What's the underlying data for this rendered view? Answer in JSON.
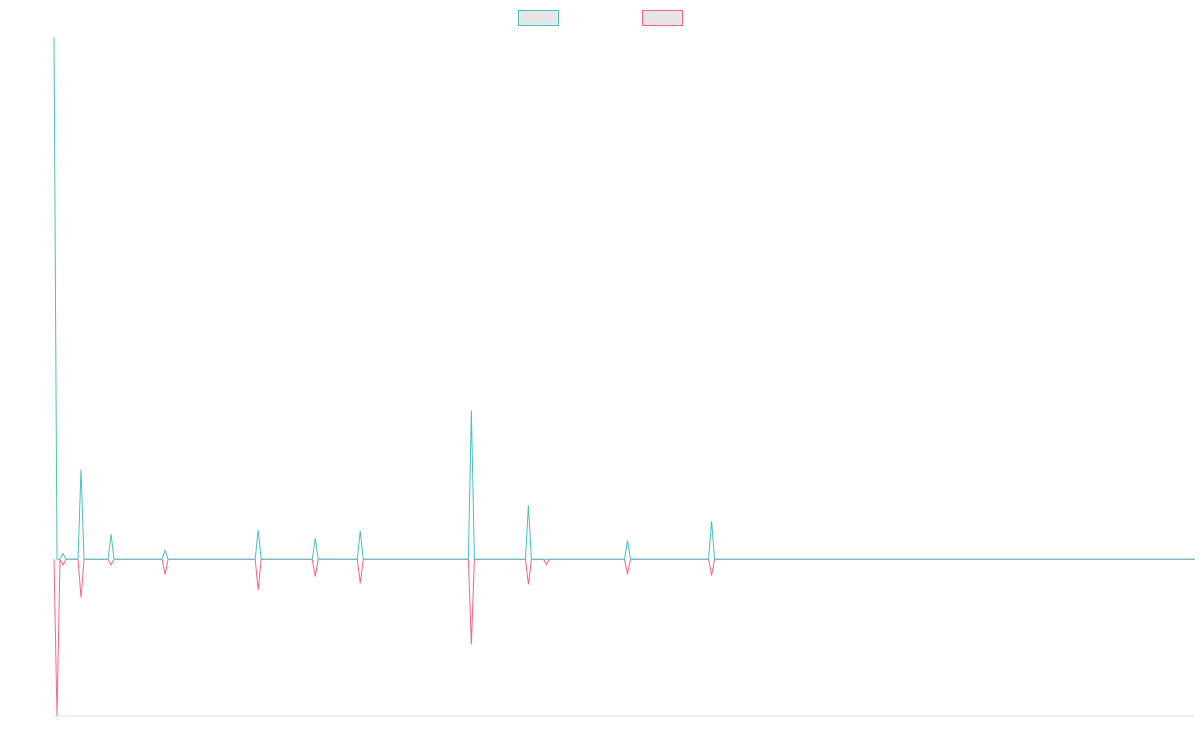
{
  "chart_data": {
    "type": "line",
    "x": [
      0,
      1,
      2,
      3,
      4,
      8,
      9,
      10,
      18,
      19,
      20,
      36,
      37,
      38,
      67,
      68,
      69,
      86,
      87,
      88,
      101,
      102,
      103,
      138,
      139,
      140,
      157,
      158,
      159,
      163,
      164,
      165,
      190,
      191,
      192,
      218,
      219,
      220,
      380
    ],
    "xlim": [
      0,
      380
    ],
    "ylim": [
      -30,
      100
    ],
    "legend": "top",
    "series": [
      {
        "color": "#4bc0c0",
        "values": [
          100,
          0,
          0,
          1.1,
          0,
          0,
          17.2,
          0,
          0,
          4.8,
          0,
          0,
          1.7,
          0,
          0,
          5.6,
          0,
          0,
          4,
          0,
          0,
          5.4,
          0,
          0,
          28.5,
          0,
          0,
          10.3,
          0,
          0,
          0,
          0,
          0,
          3.6,
          0,
          0,
          7.3,
          0,
          0
        ]
      },
      {
        "color": "#ff6384",
        "values": [
          0,
          -30,
          0,
          -1.1,
          0,
          0,
          -7.3,
          0,
          0,
          -1.1,
          0,
          0,
          -2.9,
          0,
          0,
          -5.9,
          0,
          0,
          -3.3,
          0,
          0,
          -4.6,
          0,
          0,
          -16.3,
          0,
          0,
          -4.8,
          0,
          0,
          -1,
          0,
          0,
          -2.9,
          0,
          0,
          -3.1,
          0,
          0
        ]
      }
    ]
  }
}
